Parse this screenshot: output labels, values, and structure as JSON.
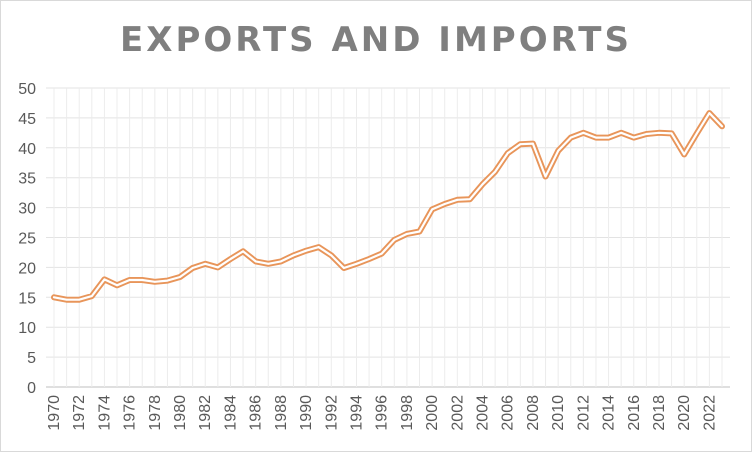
{
  "chart_data": {
    "type": "line",
    "title": "EXPORTS AND IMPORTS",
    "xlabel": "",
    "ylabel": "",
    "ylim": [
      0,
      50
    ],
    "yticks": [
      0,
      5,
      10,
      15,
      20,
      25,
      30,
      35,
      40,
      45,
      50
    ],
    "grid": true,
    "legend": "none",
    "line_color": "#e8955a",
    "x": [
      1970,
      1971,
      1972,
      1973,
      1974,
      1975,
      1976,
      1977,
      1978,
      1979,
      1980,
      1981,
      1982,
      1983,
      1984,
      1985,
      1986,
      1987,
      1988,
      1989,
      1990,
      1991,
      1992,
      1993,
      1994,
      1995,
      1996,
      1997,
      1998,
      1999,
      2000,
      2001,
      2002,
      2003,
      2004,
      2005,
      2006,
      2007,
      2008,
      2009,
      2010,
      2011,
      2012,
      2013,
      2014,
      2015,
      2016,
      2017,
      2018,
      2019,
      2020,
      2021,
      2022,
      2023
    ],
    "xtick_labels": [
      "1970",
      "1972",
      "1974",
      "1976",
      "1978",
      "1980",
      "1982",
      "1984",
      "1986",
      "1988",
      "1990",
      "1992",
      "1994",
      "1996",
      "1998",
      "2000",
      "2002",
      "2004",
      "2006",
      "2008",
      "2010",
      "2012",
      "2014",
      "2016",
      "2018",
      "2020",
      "2022"
    ],
    "values": [
      15.0,
      14.6,
      14.6,
      15.2,
      18.0,
      17.0,
      17.9,
      17.9,
      17.6,
      17.8,
      18.4,
      19.9,
      20.6,
      20.0,
      21.4,
      22.7,
      21.0,
      20.6,
      21.0,
      22.0,
      22.8,
      23.4,
      22.0,
      19.9,
      20.6,
      21.4,
      22.3,
      24.6,
      25.6,
      26.0,
      29.7,
      30.6,
      31.3,
      31.4,
      33.9,
      36.0,
      39.1,
      40.6,
      40.7,
      35.2,
      39.5,
      41.7,
      42.5,
      41.7,
      41.7,
      42.5,
      41.7,
      42.3,
      42.5,
      42.4,
      38.9,
      42.4,
      45.8,
      43.6
    ]
  }
}
